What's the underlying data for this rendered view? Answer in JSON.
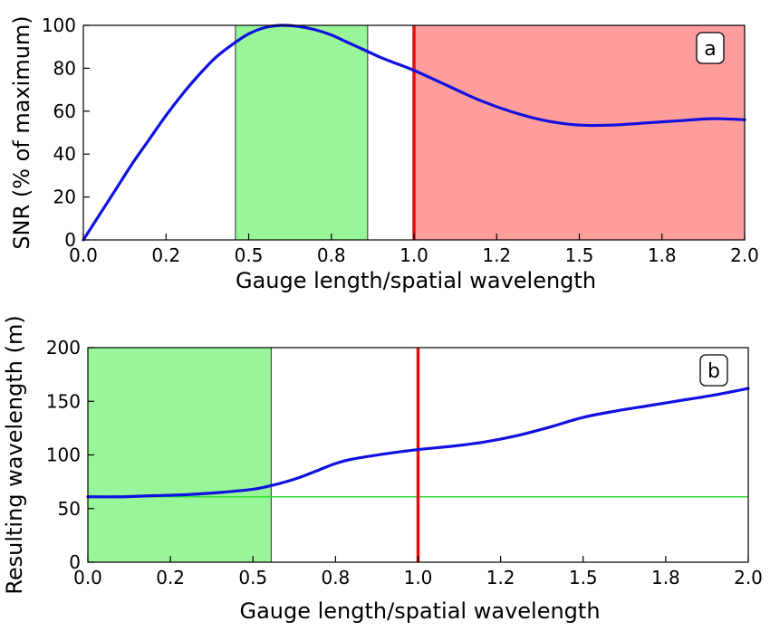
{
  "chart_data": [
    {
      "panel": "a",
      "type": "line",
      "xlabel": "Gauge length/spatial wavelength",
      "ylabel": "SNR (% of maximum)",
      "xlim": [
        0.0,
        2.0
      ],
      "ylim": [
        0,
        100
      ],
      "xticks": [
        0.0,
        0.25,
        0.5,
        0.75,
        1.0,
        1.25,
        1.5,
        1.75,
        2.0
      ],
      "xtick_labels": [
        "0.0",
        "0.2",
        "0.5",
        "0.8",
        "1.0",
        "1.2",
        "1.5",
        "1.8",
        "2.0"
      ],
      "yticks": [
        0,
        20,
        40,
        60,
        80,
        100
      ],
      "ytick_labels": [
        "0",
        "20",
        "40",
        "60",
        "80",
        "100"
      ],
      "series": [
        {
          "color": "#1010e0",
          "x": [
            0.0,
            0.05,
            0.1,
            0.15,
            0.2,
            0.25,
            0.3,
            0.35,
            0.4,
            0.45,
            0.5,
            0.55,
            0.6,
            0.65,
            0.7,
            0.75,
            0.8,
            0.85,
            0.9,
            0.95,
            1.0,
            1.1,
            1.2,
            1.3,
            1.4,
            1.5,
            1.6,
            1.7,
            1.8,
            1.9,
            2.0
          ],
          "y": [
            0,
            12,
            24,
            36,
            47,
            58,
            68,
            77,
            85,
            91,
            96,
            99,
            100,
            99.5,
            98,
            95.5,
            92,
            88.5,
            85,
            82,
            79,
            72,
            65,
            59.5,
            55.5,
            53.5,
            53.5,
            54.5,
            55.5,
            56.5,
            56
          ]
        }
      ],
      "shaded_regions": [
        {
          "x0": 0.46,
          "x1": 0.86,
          "color": "#99f599"
        },
        {
          "x0": 1.0,
          "x1": 2.0,
          "color": "#ff9c9c"
        }
      ],
      "vline": {
        "x": 1.0,
        "color": "#e01010"
      },
      "annotation": "a",
      "annotation_position": "top-right"
    },
    {
      "panel": "b",
      "type": "line",
      "xlabel": "Gauge length/spatial wavelength",
      "ylabel": "Resulting wavelength (m)",
      "xlim": [
        0.0,
        2.0
      ],
      "ylim": [
        0,
        200
      ],
      "xticks": [
        0.0,
        0.25,
        0.5,
        0.75,
        1.0,
        1.25,
        1.5,
        1.75,
        2.0
      ],
      "xtick_labels": [
        "0.0",
        "0.2",
        "0.5",
        "0.8",
        "1.0",
        "1.2",
        "1.5",
        "1.8",
        "2.0"
      ],
      "yticks": [
        0,
        50,
        100,
        150,
        200
      ],
      "ytick_labels": [
        "0",
        "50",
        "100",
        "150",
        "200"
      ],
      "series": [
        {
          "color": "#1010e0",
          "x": [
            0.0,
            0.1,
            0.2,
            0.3,
            0.4,
            0.5,
            0.55,
            0.6,
            0.65,
            0.7,
            0.75,
            0.8,
            0.9,
            1.0,
            1.1,
            1.2,
            1.3,
            1.4,
            1.5,
            1.6,
            1.7,
            1.8,
            1.9,
            2.0
          ],
          "y": [
            61,
            61,
            62,
            63,
            65,
            68,
            71,
            75,
            80,
            86,
            92,
            96,
            101,
            105,
            108,
            112,
            118,
            126,
            135,
            141,
            146,
            151,
            156,
            162
          ]
        }
      ],
      "shaded_regions": [
        {
          "x0": 0.0,
          "x1": 0.555,
          "color": "#99f599"
        }
      ],
      "hline": {
        "y": 61,
        "color": "#33dd33"
      },
      "vline": {
        "x": 1.0,
        "color": "#e01010"
      },
      "annotation": "b",
      "annotation_position": "top-right"
    }
  ]
}
